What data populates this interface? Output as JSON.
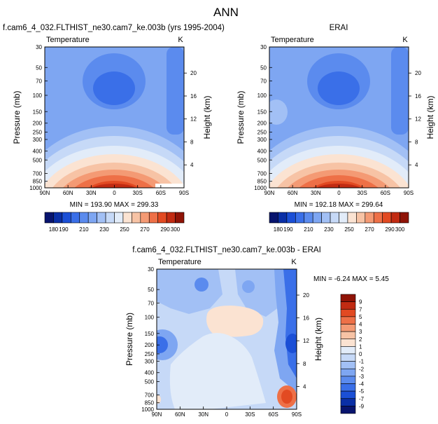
{
  "figure": {
    "title": "ANN"
  },
  "colors": {
    "temperature_scale": [
      "#08146e",
      "#0a2fa6",
      "#1b4fd6",
      "#3a6fe8",
      "#5b8bee",
      "#7ea6f2",
      "#a2c0f5",
      "#c6d9f7",
      "#e2ecf9",
      "#fbe3d2",
      "#f7c3a5",
      "#f49a74",
      "#ee7047",
      "#e24a22",
      "#c12b12",
      "#8f1306"
    ],
    "difference_scale": [
      "#08146e",
      "#0a2fa6",
      "#1b4fd6",
      "#3a6fe8",
      "#5b8bee",
      "#7ea6f2",
      "#a2c0f5",
      "#c6d9f7",
      "#e2ecf9",
      "#fbe3d2",
      "#f7c3a5",
      "#f49a74",
      "#ee7047",
      "#e24a22",
      "#c12b12",
      "#8f1306"
    ]
  },
  "chart_data": [
    {
      "type": "heatmap",
      "title": "f.cam6_4_032.FLTHIST_ne30.cam7_ke.003b (yrs 1995-2004)",
      "subtitle": "Temperature",
      "units": "K",
      "xlabel": "",
      "ylabel": "Pressure (mb)",
      "y2label": "Height (km)",
      "x_ticks": [
        "90N",
        "60N",
        "30N",
        "0",
        "30S",
        "60S",
        "90S"
      ],
      "x_tick_values": [
        90,
        60,
        30,
        0,
        -30,
        -60,
        -90
      ],
      "y_ticks": [
        "30",
        "50",
        "70",
        "100",
        "150",
        "200",
        "250",
        "300",
        "400",
        "500",
        "700",
        "850",
        "1000"
      ],
      "y_tick_values": [
        30,
        50,
        70,
        100,
        150,
        200,
        250,
        300,
        400,
        500,
        700,
        850,
        1000
      ],
      "y_scale": "log",
      "ylim": [
        30,
        1000
      ],
      "y2_ticks": [
        "20",
        "16",
        "12",
        "8",
        "4"
      ],
      "y2_tick_values": [
        20,
        16,
        12,
        8,
        4
      ],
      "min_max": "MIN = 193.90   MAX = 299.33",
      "min": 193.9,
      "max": 299.33,
      "levels": [
        180,
        190,
        200,
        210,
        220,
        230,
        240,
        250,
        260,
        270,
        280,
        290,
        300
      ],
      "level_labels": [
        "180",
        "190",
        "210",
        "230",
        "250",
        "270",
        "290",
        "300"
      ],
      "level_label_values": [
        180,
        190,
        210,
        230,
        250,
        270,
        290,
        300
      ],
      "colorbar_orientation": "horizontal"
    },
    {
      "type": "heatmap",
      "title": "ERAI",
      "subtitle": "Temperature",
      "units": "K",
      "xlabel": "",
      "ylabel": "Pressure (mb)",
      "y2label": "Height (km)",
      "x_ticks": [
        "90N",
        "60N",
        "30N",
        "0",
        "30S",
        "60S",
        "90S"
      ],
      "x_tick_values": [
        90,
        60,
        30,
        0,
        -30,
        -60,
        -90
      ],
      "y_ticks": [
        "30",
        "50",
        "70",
        "100",
        "150",
        "200",
        "250",
        "300",
        "400",
        "500",
        "700",
        "850",
        "1000"
      ],
      "y_tick_values": [
        30,
        50,
        70,
        100,
        150,
        200,
        250,
        300,
        400,
        500,
        700,
        850,
        1000
      ],
      "y_scale": "log",
      "ylim": [
        30,
        1000
      ],
      "y2_ticks": [
        "20",
        "16",
        "12",
        "8",
        "4"
      ],
      "y2_tick_values": [
        20,
        16,
        12,
        8,
        4
      ],
      "min_max": "MIN = 192.18   MAX = 299.64",
      "min": 192.18,
      "max": 299.64,
      "levels": [
        180,
        190,
        200,
        210,
        220,
        230,
        240,
        250,
        260,
        270,
        280,
        290,
        300
      ],
      "level_labels": [
        "180",
        "190",
        "210",
        "230",
        "250",
        "270",
        "290",
        "300"
      ],
      "level_label_values": [
        180,
        190,
        210,
        230,
        250,
        270,
        290,
        300
      ],
      "colorbar_orientation": "horizontal"
    },
    {
      "type": "heatmap",
      "title": "f.cam6_4_032.FLTHIST_ne30.cam7_ke.003b - ERAI",
      "subtitle": "Temperature",
      "units": "K",
      "xlabel": "",
      "ylabel": "Pressure (mb)",
      "y2label": "Height (km)",
      "x_ticks": [
        "90N",
        "60N",
        "30N",
        "0",
        "30S",
        "60S",
        "90S"
      ],
      "x_tick_values": [
        90,
        60,
        30,
        0,
        -30,
        -60,
        -90
      ],
      "y_ticks": [
        "30",
        "50",
        "70",
        "100",
        "150",
        "200",
        "250",
        "300",
        "400",
        "500",
        "700",
        "850",
        "1000"
      ],
      "y_tick_values": [
        30,
        50,
        70,
        100,
        150,
        200,
        250,
        300,
        400,
        500,
        700,
        850,
        1000
      ],
      "y_scale": "log",
      "ylim": [
        30,
        1000
      ],
      "y2_ticks": [
        "20",
        "16",
        "12",
        "8",
        "4"
      ],
      "y2_tick_values": [
        20,
        16,
        12,
        8,
        4
      ],
      "min_max": "MIN = -6.24   MAX =  5.45",
      "min": -6.24,
      "max": 5.45,
      "levels": [
        9,
        7,
        5,
        4,
        3,
        2,
        1,
        0,
        -1,
        -2,
        -3,
        -4,
        -5,
        -7,
        -9
      ],
      "level_labels": [
        "9",
        "7",
        "5",
        "4",
        "3",
        "2",
        "1",
        "0",
        "-1",
        "-2",
        "-3",
        "-4",
        "-5",
        "-7",
        "-9"
      ],
      "level_label_values": [
        9,
        7,
        5,
        4,
        3,
        2,
        1,
        0,
        -1,
        -2,
        -3,
        -4,
        -5,
        -7,
        -9
      ],
      "colorbar_orientation": "vertical"
    }
  ]
}
